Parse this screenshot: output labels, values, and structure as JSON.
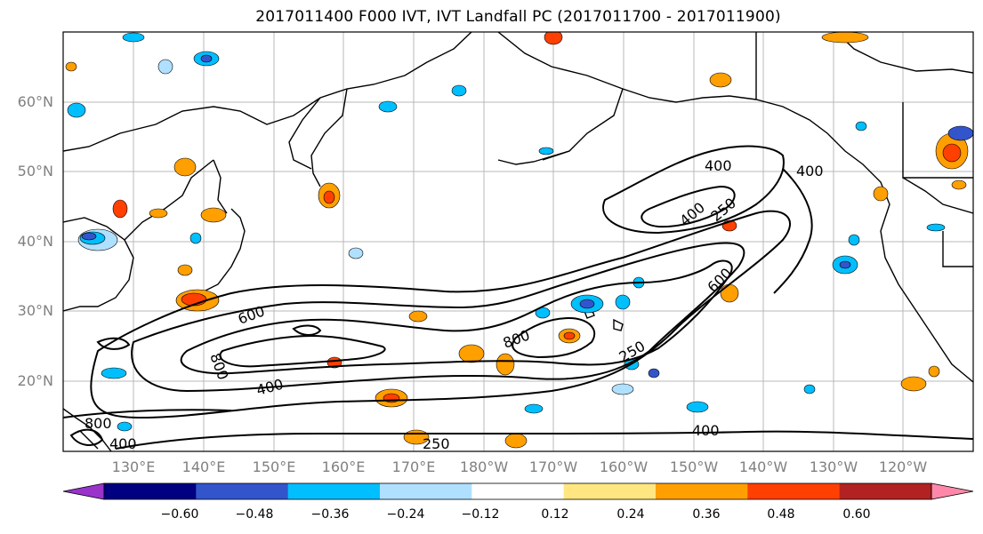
{
  "title": "2017011400 F000 IVT, IVT Landfall PC (2017011700 - 2017011900)",
  "map": {
    "lat_ticks": [
      "60°N",
      "50°N",
      "40°N",
      "30°N",
      "20°N"
    ],
    "lon_ticks": [
      "130°E",
      "140°E",
      "150°E",
      "160°E",
      "170°E",
      "180°W",
      "170°W",
      "160°W",
      "150°W",
      "140°W",
      "130°W",
      "120°W"
    ],
    "contour_labels": [
      "400",
      "400",
      "400",
      "250",
      "600",
      "800",
      "600",
      "800",
      "250",
      "400",
      "400",
      "800",
      "400",
      "250",
      "600"
    ]
  },
  "colorbar": {
    "ticks": [
      "−0.60",
      "−0.48",
      "−0.36",
      "−0.24",
      "−0.12",
      "0.12",
      "0.24",
      "0.36",
      "0.48",
      "0.60"
    ],
    "colors": [
      "#9933cc",
      "#000080",
      "#3355cc",
      "#00bfff",
      "#b0e0ff",
      "#ffffff",
      "#ffe680",
      "#ff9f00",
      "#ff4000",
      "#b22222",
      "#ff88aa"
    ]
  }
}
